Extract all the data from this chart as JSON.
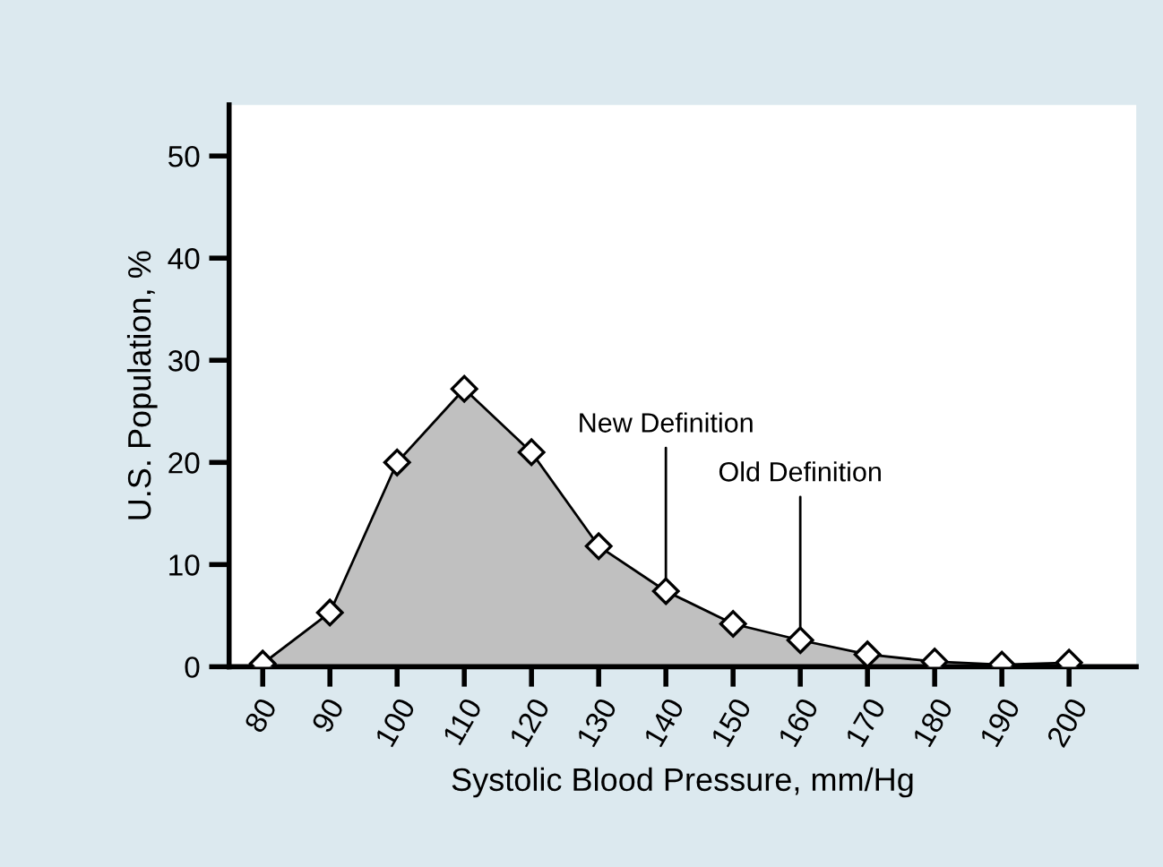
{
  "chart_data": {
    "type": "area",
    "xlabel": "Systolic Blood Pressure, mm/Hg",
    "ylabel": "U.S. Population, %",
    "x": [
      80,
      90,
      100,
      110,
      120,
      130,
      140,
      150,
      160,
      170,
      180,
      190,
      200
    ],
    "series": [
      {
        "color": "#c0c0c0",
        "values": [
          0.3,
          5.3,
          20,
          27.2,
          21,
          11.8,
          7.4,
          4.2,
          2.6,
          1.2,
          0.5,
          0.2,
          0.4
        ]
      }
    ],
    "xlim": [
      75,
      210
    ],
    "xticks": [
      80,
      90,
      100,
      110,
      120,
      130,
      140,
      150,
      160,
      170,
      180,
      190,
      200
    ],
    "ylim": [
      0,
      55
    ],
    "yticks": [
      0,
      10,
      20,
      30,
      40,
      50
    ],
    "grid": false,
    "legend": false,
    "marker": "diamond",
    "line_style": "solid",
    "annotations": [
      {
        "text": "New Definition",
        "x": 140,
        "y": 7.4
      },
      {
        "text": "Old Definition",
        "x": 160,
        "y": 2.6
      }
    ]
  }
}
